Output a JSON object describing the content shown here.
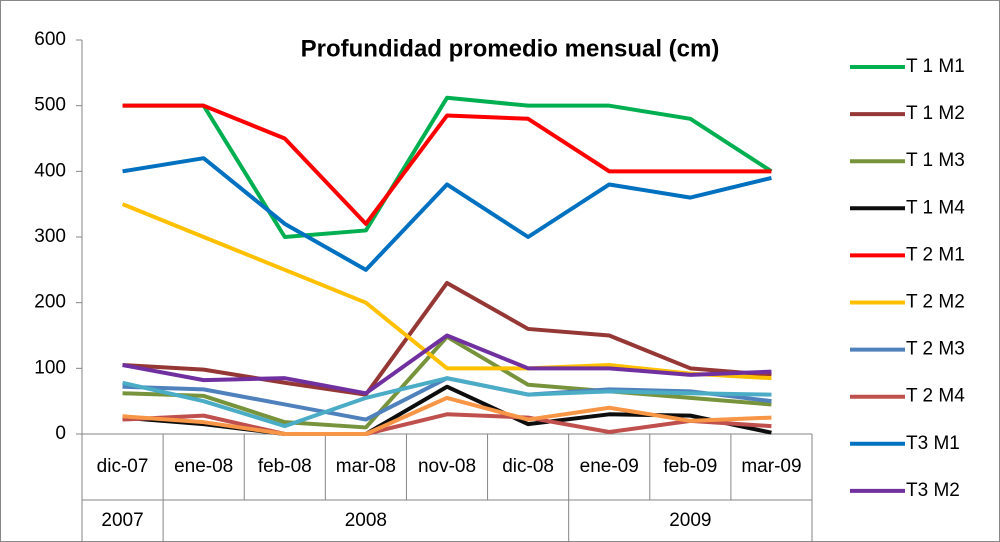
{
  "chart_data": {
    "type": "line",
    "title": "Profundidad promedio mensual (cm)",
    "categories": [
      "dic-07",
      "ene-08",
      "feb-08",
      "mar-08",
      "nov-08",
      "dic-08",
      "ene-09",
      "feb-09",
      "mar-09"
    ],
    "category_groups": [
      {
        "label": "2007",
        "count": 1
      },
      {
        "label": "2008",
        "count": 5
      },
      {
        "label": "2009",
        "count": 3
      }
    ],
    "ylim": [
      0,
      600
    ],
    "yticks": [
      0,
      100,
      200,
      300,
      400,
      500,
      600
    ],
    "series": [
      {
        "name": "T 1 M1",
        "color": "#00b050",
        "values": [
          500,
          500,
          300,
          310,
          512,
          500,
          500,
          480,
          400
        ]
      },
      {
        "name": "T 1 M2",
        "color": "#953735",
        "values": [
          105,
          98,
          78,
          60,
          230,
          160,
          150,
          100,
          90
        ]
      },
      {
        "name": "T 1 M3",
        "color": "#77933c",
        "values": [
          62,
          58,
          18,
          10,
          148,
          75,
          65,
          55,
          45
        ]
      },
      {
        "name": "T 1 M4",
        "color": "#0d0d0d",
        "values": [
          25,
          15,
          0,
          0,
          72,
          15,
          30,
          28,
          2
        ]
      },
      {
        "name": "T 2 M1",
        "color": "#ff0000",
        "values": [
          500,
          500,
          450,
          320,
          485,
          480,
          400,
          400,
          400
        ]
      },
      {
        "name": "T 2 M2",
        "color": "#ffc000",
        "values": [
          350,
          300,
          250,
          200,
          100,
          100,
          105,
          92,
          85
        ]
      },
      {
        "name": "T 2 M3",
        "color": "#4f81bd",
        "values": [
          72,
          68,
          45,
          22,
          85,
          60,
          68,
          65,
          50
        ]
      },
      {
        "name": "T 2 M4",
        "color": "#c0504d",
        "values": [
          22,
          28,
          0,
          0,
          30,
          25,
          3,
          20,
          12
        ]
      },
      {
        "name": "T3 M1",
        "color": "#0070c0",
        "values": [
          400,
          420,
          320,
          250,
          380,
          300,
          380,
          360,
          390
        ]
      },
      {
        "name": "T3 M2",
        "color": "#7030a0",
        "values": [
          105,
          82,
          85,
          62,
          150,
          100,
          100,
          90,
          95
        ]
      },
      {
        "color": "#4bacc6",
        "values": [
          78,
          50,
          12,
          55,
          85,
          60,
          65,
          62,
          60
        ]
      },
      {
        "color": "#f79646",
        "values": [
          27,
          18,
          0,
          0,
          55,
          22,
          40,
          20,
          25
        ]
      }
    ]
  }
}
